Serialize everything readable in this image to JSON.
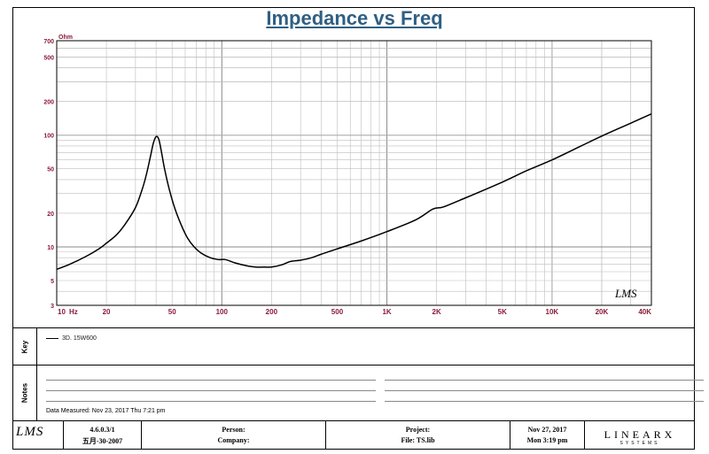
{
  "chart_data": {
    "type": "line",
    "title": "Impedance vs Freq",
    "ylabel_unit": "Ohm",
    "xscale": "log",
    "yscale": "log",
    "xlim": [
      10,
      40000
    ],
    "ylim": [
      3,
      700
    ],
    "grid": true,
    "x_tick_labels": [
      {
        "v": 10,
        "t": "10"
      },
      {
        "v": 20,
        "t": "20"
      },
      {
        "v": 50,
        "t": "50"
      },
      {
        "v": 100,
        "t": "100"
      },
      {
        "v": 200,
        "t": "200"
      },
      {
        "v": 500,
        "t": "500"
      },
      {
        "v": 1000,
        "t": "1K"
      },
      {
        "v": 2000,
        "t": "2K"
      },
      {
        "v": 5000,
        "t": "5K"
      },
      {
        "v": 10000,
        "t": "10K"
      },
      {
        "v": 20000,
        "t": "20K"
      },
      {
        "v": 40000,
        "t": "40K"
      }
    ],
    "x_unit_label": "Hz",
    "y_tick_labels": [
      {
        "v": 3,
        "t": "3"
      },
      {
        "v": 5,
        "t": "5"
      },
      {
        "v": 10,
        "t": "10"
      },
      {
        "v": 20,
        "t": "20"
      },
      {
        "v": 50,
        "t": "50"
      },
      {
        "v": 100,
        "t": "100"
      },
      {
        "v": 200,
        "t": "200"
      },
      {
        "v": 500,
        "t": "500"
      },
      {
        "v": 700,
        "t": "700"
      }
    ],
    "series": [
      {
        "name": "3D. 15W600",
        "color": "#000000",
        "points": [
          [
            10,
            6.3
          ],
          [
            12,
            7.0
          ],
          [
            15,
            8.2
          ],
          [
            18,
            9.6
          ],
          [
            20,
            10.8
          ],
          [
            23,
            12.8
          ],
          [
            26,
            16
          ],
          [
            30,
            22.5
          ],
          [
            33,
            33
          ],
          [
            35,
            45
          ],
          [
            37,
            65
          ],
          [
            38.5,
            85
          ],
          [
            40,
            97
          ],
          [
            41.5,
            92
          ],
          [
            43,
            72
          ],
          [
            45,
            50
          ],
          [
            48,
            33
          ],
          [
            52,
            22
          ],
          [
            57,
            15.5
          ],
          [
            62,
            12
          ],
          [
            68,
            10
          ],
          [
            75,
            8.8
          ],
          [
            85,
            8.0
          ],
          [
            95,
            7.7
          ],
          [
            105,
            7.7
          ],
          [
            120,
            7.2
          ],
          [
            140,
            6.8
          ],
          [
            160,
            6.6
          ],
          [
            180,
            6.6
          ],
          [
            200,
            6.6
          ],
          [
            230,
            6.9
          ],
          [
            260,
            7.4
          ],
          [
            300,
            7.6
          ],
          [
            350,
            8.0
          ],
          [
            400,
            8.6
          ],
          [
            500,
            9.6
          ],
          [
            700,
            11.3
          ],
          [
            1000,
            13.7
          ],
          [
            1500,
            17.5
          ],
          [
            1900,
            21.8
          ],
          [
            2200,
            22.8
          ],
          [
            3000,
            27.5
          ],
          [
            5000,
            38
          ],
          [
            7000,
            48
          ],
          [
            10000,
            60
          ],
          [
            15000,
            80
          ],
          [
            20000,
            98
          ],
          [
            30000,
            128
          ],
          [
            40000,
            155
          ]
        ]
      }
    ],
    "color_palette": {
      "grid": "#bdbdbd",
      "axis_text": "#8b1a3a",
      "curve": "#000000"
    }
  },
  "legend_panel": {
    "label": "Key",
    "entry": "3D. 15W600"
  },
  "notes_panel": {
    "label": "Notes",
    "data_measured": "Data Measured: Nov 23, 2017  Thu  7:21 pm"
  },
  "footer": {
    "lms_logo": "LMS",
    "version_line1": "4.6.0.3/1",
    "version_line2": "五月-30-2007",
    "person_label": "Person:",
    "company_label": "Company:",
    "project_label": "Project:",
    "file_label": "File: TS.lib",
    "date_line1": "Nov 27, 2017",
    "date_line2": "Mon  3:19 pm",
    "linearx_logo": "LINEARX",
    "linearx_sub": "SYSTEMS"
  },
  "plot_logo": "LMS"
}
